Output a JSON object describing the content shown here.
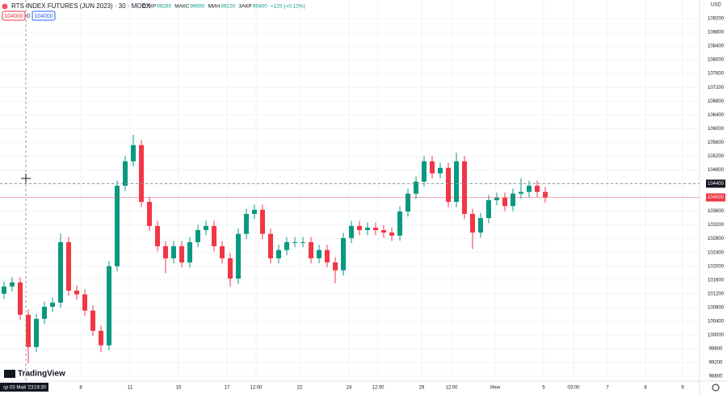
{
  "ui": {
    "title": "RTS INDEX FUTURES (JUN 2023) · 30 · MOEX",
    "ohlc": [
      {
        "label": "ОТКР",
        "value": "99280"
      },
      {
        "label": "МАКС",
        "value": "99550"
      },
      {
        "label": "МИН",
        "value": "99220"
      },
      {
        "label": "ЗАКР",
        "value": "99400"
      }
    ],
    "change": "+120 (+0.12%)",
    "inputs": [
      "104000",
      "0",
      "104000"
    ],
    "currency": "USD",
    "logo": "TradingView",
    "crosshair_date": "ср 03 Май '23",
    "crosshair_time": "19:30"
  },
  "chart_data": {
    "type": "candlestick",
    "colors": {
      "up": "#089981",
      "down": "#f23645"
    },
    "grid": true,
    "open": [
      101200,
      101410,
      101530,
      100590,
      99650,
      100470,
      100820,
      100940,
      102700,
      101290,
      101180,
      100710,
      100120,
      99700,
      102000,
      104340,
      105050,
      105520,
      103870,
      103170,
      102580,
      102230,
      102580,
      102110,
      102700,
      103050,
      103170,
      102580,
      102230,
      101640,
      102940,
      103520,
      103640,
      102940,
      102230,
      102470,
      102700,
      102700,
      102700,
      102230,
      102470,
      102110,
      101880,
      102820,
      103170,
      103050,
      103120,
      103050,
      102980,
      102890,
      103590,
      104110,
      104460,
      105050,
      104700,
      104860,
      103870,
      105050,
      103520,
      102980,
      103400,
      103920,
      103990,
      103750,
      104110,
      104160,
      104340,
      104160
    ],
    "high": [
      101560,
      101680,
      101680,
      100740,
      100620,
      100970,
      101090,
      102950,
      102850,
      101440,
      101330,
      100860,
      100270,
      102150,
      104490,
      105200,
      105820,
      105670,
      104020,
      103320,
      102730,
      102730,
      102730,
      102850,
      103200,
      103320,
      103320,
      102730,
      102380,
      103090,
      103670,
      103790,
      103790,
      103090,
      102620,
      102850,
      102850,
      102850,
      102850,
      102620,
      102620,
      102260,
      102970,
      103320,
      103320,
      103270,
      103270,
      103200,
      103130,
      103740,
      104260,
      104610,
      105200,
      105200,
      105010,
      105010,
      105300,
      105200,
      103670,
      103550,
      104070,
      104140,
      104140,
      104260,
      104560,
      104490,
      104490,
      104310
    ],
    "low": [
      101050,
      101260,
      100440,
      99180,
      99500,
      100320,
      100670,
      100790,
      101140,
      101030,
      100560,
      99970,
      99500,
      99550,
      101850,
      104190,
      104900,
      103720,
      103020,
      102430,
      101800,
      102080,
      101960,
      101960,
      102550,
      102900,
      102430,
      102080,
      101400,
      101490,
      102790,
      103370,
      102790,
      102080,
      102080,
      102320,
      102550,
      102550,
      102080,
      102080,
      101960,
      101500,
      101730,
      102670,
      102900,
      102900,
      102900,
      102830,
      102740,
      102740,
      103440,
      103960,
      104310,
      104550,
      104550,
      103720,
      103720,
      103370,
      102500,
      102830,
      103250,
      103770,
      103600,
      103600,
      103960,
      104010,
      104010,
      103850
    ],
    "close": [
      101410,
      101530,
      100590,
      99650,
      100470,
      100820,
      100940,
      102700,
      101290,
      101180,
      100710,
      100120,
      99700,
      102000,
      104340,
      105050,
      105520,
      103870,
      103170,
      102580,
      102230,
      102580,
      102110,
      102700,
      103050,
      103170,
      102580,
      102230,
      101640,
      102940,
      103520,
      103640,
      102940,
      102230,
      102470,
      102700,
      102700,
      102700,
      102230,
      102470,
      102110,
      101880,
      102820,
      103170,
      103050,
      103120,
      103050,
      102980,
      102890,
      103590,
      104110,
      104460,
      105050,
      104700,
      104860,
      103870,
      105050,
      103520,
      102980,
      103400,
      103920,
      103990,
      103750,
      104110,
      104160,
      104340,
      104160,
      104000
    ],
    "xlim": [
      -0.5,
      86.1
    ],
    "xticks": [
      {
        "value": 9.5,
        "label": "8"
      },
      {
        "value": 15.6,
        "label": "11"
      },
      {
        "value": 21.6,
        "label": "15"
      },
      {
        "value": 27.6,
        "label": "17"
      },
      {
        "value": 31.2,
        "label": "12:00"
      },
      {
        "value": 36.6,
        "label": "22"
      },
      {
        "value": 42.7,
        "label": "24"
      },
      {
        "value": 46.3,
        "label": "12:00"
      },
      {
        "value": 51.7,
        "label": "29"
      },
      {
        "value": 55.4,
        "label": "12:00"
      },
      {
        "value": 60.8,
        "label": "Июн"
      },
      {
        "value": 66.8,
        "label": "5"
      },
      {
        "value": 70.5,
        "label": "03:00"
      },
      {
        "value": 74.7,
        "label": "7"
      },
      {
        "value": 79.4,
        "label": "8"
      },
      {
        "value": 84.0,
        "label": "9"
      }
    ],
    "ylim": [
      98660,
      109740
    ],
    "yticks": [
      98800,
      99200,
      99600,
      100000,
      100400,
      100800,
      101200,
      101600,
      102000,
      102400,
      102800,
      103200,
      103600,
      104000,
      104400,
      104800,
      105200,
      105600,
      106000,
      106400,
      106800,
      107200,
      107600,
      108000,
      108400,
      108800,
      109200
    ],
    "crosshair_price": 104400,
    "last_price": 104000
  }
}
